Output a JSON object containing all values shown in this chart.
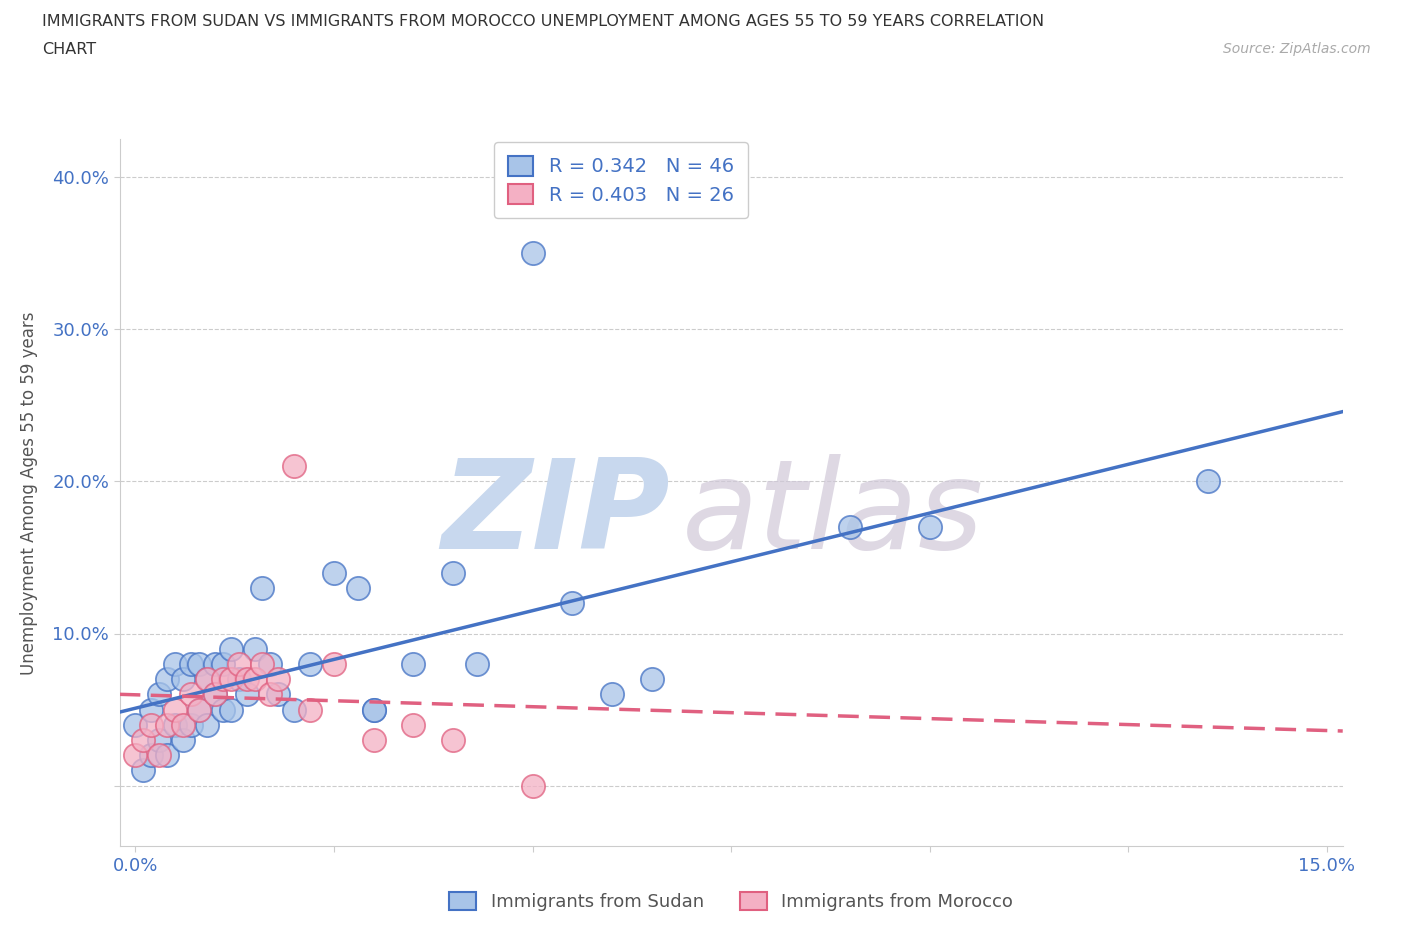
{
  "title_line1": "IMMIGRANTS FROM SUDAN VS IMMIGRANTS FROM MOROCCO UNEMPLOYMENT AMONG AGES 55 TO 59 YEARS CORRELATION",
  "title_line2": "CHART",
  "source_text": "Source: ZipAtlas.com",
  "ylabel": "Unemployment Among Ages 55 to 59 years",
  "xlim": [
    -0.002,
    0.152
  ],
  "ylim": [
    -0.04,
    0.425
  ],
  "xtick_positions": [
    0.0,
    0.025,
    0.05,
    0.075,
    0.1,
    0.125,
    0.15
  ],
  "xtick_labels": [
    "0.0%",
    "",
    "",
    "",
    "",
    "",
    "15.0%"
  ],
  "ytick_positions": [
    0.0,
    0.1,
    0.2,
    0.3,
    0.4
  ],
  "ytick_labels": [
    "",
    "10.0%",
    "20.0%",
    "30.0%",
    "40.0%"
  ],
  "sudan_R": 0.342,
  "sudan_N": 46,
  "morocco_R": 0.403,
  "morocco_N": 26,
  "sudan_fill_color": "#a8c4e8",
  "morocco_fill_color": "#f4b0c4",
  "sudan_edge_color": "#4472c4",
  "morocco_edge_color": "#e06080",
  "watermark_color": "#dde8f5",
  "sudan_points_x": [
    0.0,
    0.001,
    0.002,
    0.002,
    0.003,
    0.003,
    0.004,
    0.004,
    0.005,
    0.005,
    0.006,
    0.006,
    0.007,
    0.007,
    0.008,
    0.008,
    0.009,
    0.009,
    0.01,
    0.01,
    0.011,
    0.011,
    0.012,
    0.012,
    0.013,
    0.014,
    0.015,
    0.016,
    0.017,
    0.018,
    0.02,
    0.022,
    0.025,
    0.028,
    0.03,
    0.03,
    0.035,
    0.04,
    0.043,
    0.05,
    0.055,
    0.06,
    0.065,
    0.09,
    0.1,
    0.135
  ],
  "sudan_points_y": [
    0.04,
    0.01,
    0.02,
    0.05,
    0.03,
    0.06,
    0.02,
    0.07,
    0.04,
    0.08,
    0.03,
    0.07,
    0.04,
    0.08,
    0.05,
    0.08,
    0.04,
    0.07,
    0.06,
    0.08,
    0.05,
    0.08,
    0.05,
    0.09,
    0.07,
    0.06,
    0.09,
    0.13,
    0.08,
    0.06,
    0.05,
    0.08,
    0.14,
    0.13,
    0.05,
    0.05,
    0.08,
    0.14,
    0.08,
    0.35,
    0.12,
    0.06,
    0.07,
    0.17,
    0.17,
    0.2
  ],
  "morocco_points_x": [
    0.0,
    0.001,
    0.002,
    0.003,
    0.004,
    0.005,
    0.006,
    0.007,
    0.008,
    0.009,
    0.01,
    0.011,
    0.012,
    0.013,
    0.014,
    0.015,
    0.016,
    0.017,
    0.018,
    0.02,
    0.022,
    0.025,
    0.03,
    0.035,
    0.04,
    0.05
  ],
  "morocco_points_y": [
    0.02,
    0.03,
    0.04,
    0.02,
    0.04,
    0.05,
    0.04,
    0.06,
    0.05,
    0.07,
    0.06,
    0.07,
    0.07,
    0.08,
    0.07,
    0.07,
    0.08,
    0.06,
    0.07,
    0.21,
    0.05,
    0.08,
    0.03,
    0.04,
    0.03,
    0.0
  ]
}
